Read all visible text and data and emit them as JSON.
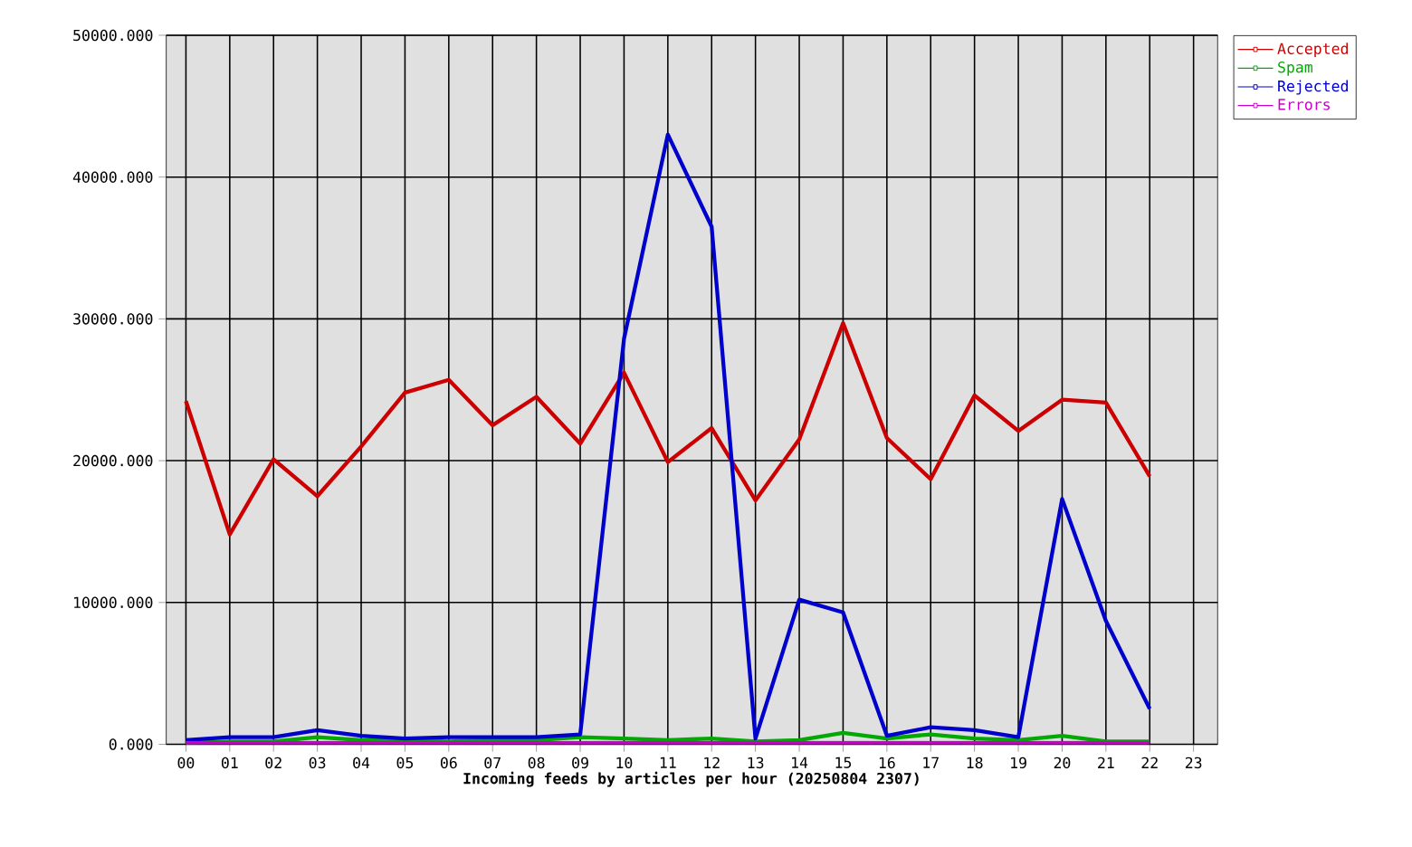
{
  "chart_data": {
    "type": "line",
    "xlabel": "Incoming feeds by articles per hour (20250804 2307)",
    "categories": [
      "00",
      "01",
      "02",
      "03",
      "04",
      "05",
      "06",
      "07",
      "08",
      "09",
      "10",
      "11",
      "12",
      "13",
      "14",
      "15",
      "16",
      "17",
      "18",
      "19",
      "20",
      "21",
      "22",
      "23"
    ],
    "series": [
      {
        "name": "Accepted",
        "color": "#cc0000",
        "values": [
          24200,
          14800,
          20100,
          17500,
          21000,
          24800,
          25700,
          22500,
          24500,
          21200,
          26200,
          19900,
          22300,
          17200,
          21500,
          29700,
          21600,
          18700,
          24600,
          22100,
          24300,
          24100,
          18900,
          null
        ]
      },
      {
        "name": "Spam",
        "color": "#00aa00",
        "values": [
          100,
          200,
          200,
          500,
          300,
          300,
          200,
          300,
          300,
          500,
          400,
          300,
          400,
          200,
          300,
          800,
          400,
          700,
          400,
          300,
          600,
          200,
          200,
          null
        ]
      },
      {
        "name": "Rejected",
        "color": "#0000cc",
        "values": [
          300,
          500,
          500,
          1000,
          600,
          400,
          500,
          500,
          500,
          700,
          28600,
          43000,
          36500,
          400,
          10200,
          9300,
          600,
          1200,
          1000,
          500,
          17300,
          8700,
          2500,
          null
        ]
      },
      {
        "name": "Errors",
        "color": "#cc00cc",
        "values": [
          100,
          100,
          100,
          100,
          100,
          100,
          100,
          100,
          100,
          100,
          100,
          100,
          100,
          100,
          100,
          100,
          100,
          100,
          100,
          100,
          100,
          100,
          100,
          null
        ]
      }
    ],
    "ylim": [
      0,
      50000
    ],
    "yticks": [
      {
        "value": 0,
        "label": "0.000"
      },
      {
        "value": 10000,
        "label": "10000.000"
      },
      {
        "value": 20000,
        "label": "20000.000"
      },
      {
        "value": 30000,
        "label": "30000.000"
      },
      {
        "value": 40000,
        "label": "40000.000"
      },
      {
        "value": 50000,
        "label": "50000.000"
      }
    ],
    "grid": true,
    "legend": "top right"
  }
}
